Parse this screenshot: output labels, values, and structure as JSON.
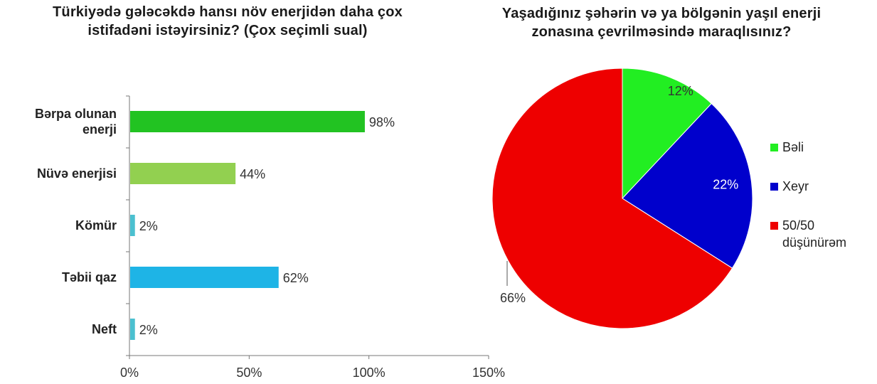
{
  "chart_data": [
    {
      "type": "bar",
      "orientation": "horizontal",
      "title": "Türkiyədə gələcəkdə hansı növ enerjidən daha çox istifadəni istəyirsiniz? (Çox seçimli sual)",
      "categories": [
        "Bərpa olunan enerji",
        "Nüvə enerjisi",
        "Kömür",
        "Təbii qaz",
        "Neft"
      ],
      "values": [
        98,
        44,
        2,
        62,
        2
      ],
      "value_labels": [
        "98%",
        "44%",
        "2%",
        "62%",
        "2%"
      ],
      "colors": [
        "#22c322",
        "#92d050",
        "#4bc0d0",
        "#1eb4e6",
        "#4bc0d0"
      ],
      "xlim": [
        0,
        150
      ],
      "xticks": [
        0,
        50,
        100,
        150
      ],
      "xtick_labels": [
        "0%",
        "50%",
        "100%",
        "150%"
      ],
      "xlabel": "",
      "ylabel": "",
      "grid": false
    },
    {
      "type": "pie",
      "title": "Yaşadığınız şəhərin və ya bölgənin yaşıl enerji zonasına çevrilməsində maraqlısınız?",
      "labels": [
        "Bəli",
        "Xeyr",
        "50/50 düşünürəm"
      ],
      "values": [
        12,
        22,
        66
      ],
      "value_labels": [
        "12%",
        "22%",
        "66%"
      ],
      "colors": [
        "#22ee22",
        "#0000cc",
        "#ee0000"
      ],
      "legend": "right"
    }
  ]
}
